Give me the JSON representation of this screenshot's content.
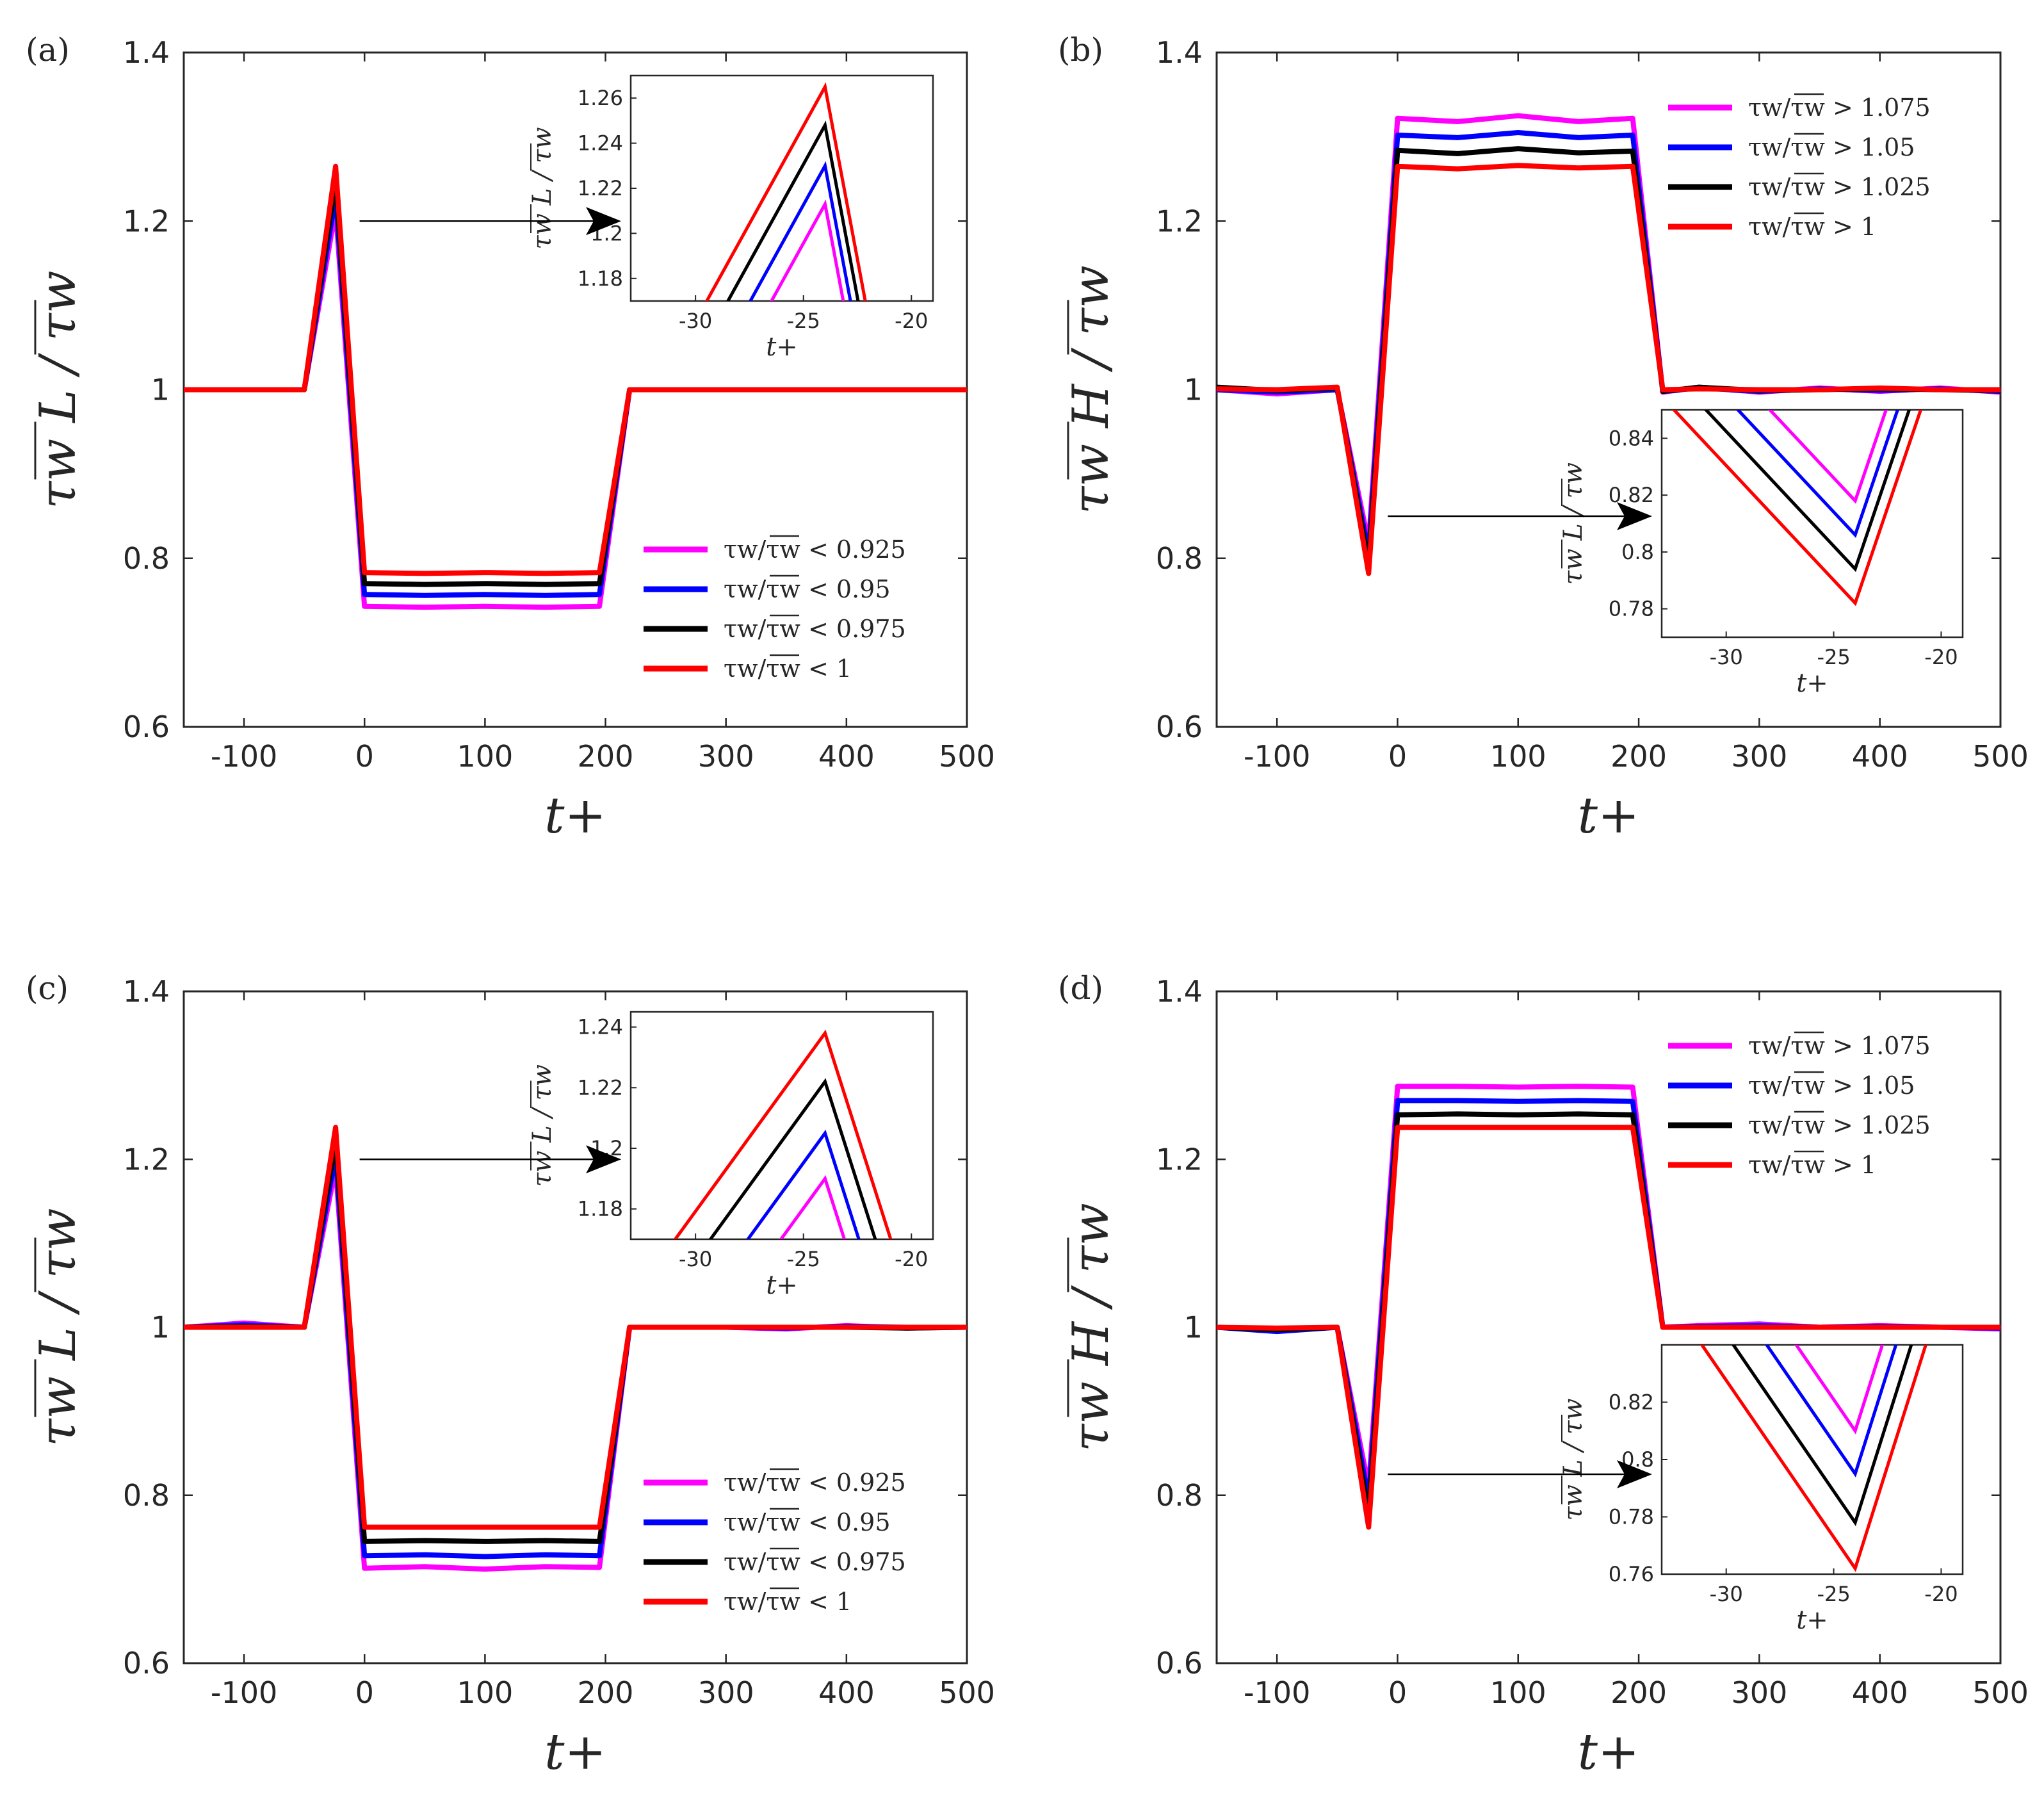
{
  "chart_data": [
    {
      "panel": "(a)",
      "type": "line",
      "xlabel": "t+",
      "ylabel": "τw L / τw",
      "xlim": [
        -150,
        500
      ],
      "ylim": [
        0.6,
        1.4
      ],
      "xticks": [
        "-100",
        "0",
        "100",
        "200",
        "300",
        "400",
        "500"
      ],
      "yticks": [
        "0.6",
        "0.8",
        "1",
        "1.2",
        "1.4"
      ],
      "x": [
        -150,
        -100,
        -50,
        -24,
        0,
        50,
        100,
        150,
        195,
        220,
        250,
        300,
        350,
        400,
        450,
        500
      ],
      "series": [
        {
          "name": "τw/τw < 0.925",
          "color": "#ff00ff",
          "values": [
            1,
            1,
            1,
            1.213,
            0.743,
            0.742,
            0.743,
            0.742,
            0.743,
            1,
            1,
            1,
            1,
            1,
            1,
            1
          ]
        },
        {
          "name": "τw/τw < 0.95",
          "color": "#0000ff",
          "values": [
            1,
            1,
            1,
            1.23,
            0.757,
            0.756,
            0.757,
            0.756,
            0.757,
            1,
            1,
            1,
            1,
            1,
            1,
            1
          ]
        },
        {
          "name": "τw/τw < 0.975",
          "color": "#000000",
          "values": [
            1,
            1,
            1,
            1.248,
            0.77,
            0.769,
            0.77,
            0.769,
            0.77,
            1,
            1,
            1,
            1,
            1,
            1,
            1
          ]
        },
        {
          "name": "τw/τw < 1",
          "color": "#ff0000",
          "values": [
            1,
            1,
            1,
            1.265,
            0.783,
            0.782,
            0.783,
            0.782,
            0.783,
            1,
            1,
            1,
            1,
            1,
            1,
            1
          ]
        }
      ],
      "legend": {
        "position": "lower-right",
        "entries": [
          "τw/τw < 0.925",
          "τw/τw < 0.95",
          "τw/τw < 0.975",
          "τw/τw < 1"
        ]
      },
      "inset": {
        "position": "top-right",
        "xlabel": "t+",
        "ylabel": "τw L / τw",
        "xlim": [
          -33,
          -19
        ],
        "ylim": [
          1.17,
          1.27
        ],
        "xticks": [
          "-30",
          "-25",
          "-20"
        ],
        "yticks": [
          "1.18",
          "1.2",
          "1.22",
          "1.24",
          "1.26"
        ],
        "peak_x": -24,
        "peaks": [
          1.213,
          1.23,
          1.248,
          1.265
        ],
        "slope_left": 0.01734,
        "slope_right": 0.05098,
        "arrow_from": [
          -20,
          1.2
        ]
      }
    },
    {
      "panel": "(b)",
      "type": "line",
      "xlabel": "t+",
      "ylabel": "τw H / τw",
      "xlim": [
        -150,
        500
      ],
      "ylim": [
        0.6,
        1.4
      ],
      "xticks": [
        "-100",
        "0",
        "100",
        "200",
        "300",
        "400",
        "500"
      ],
      "yticks": [
        "0.6",
        "0.8",
        "1",
        "1.2",
        "1.4"
      ],
      "x": [
        -150,
        -100,
        -50,
        -24,
        0,
        50,
        100,
        150,
        195,
        220,
        250,
        300,
        350,
        400,
        450,
        500
      ],
      "series": [
        {
          "name": "τw/τw > 1.075",
          "color": "#ff00ff",
          "values": [
            1,
            0.995,
            1,
            0.818,
            1.322,
            1.318,
            1.325,
            1.318,
            1.322,
            0.997,
            1.003,
            0.997,
            1.002,
            0.998,
            1.002,
            0.997
          ]
        },
        {
          "name": "τw/τw > 1.05",
          "color": "#0000ff",
          "values": [
            1,
            0.997,
            1,
            0.806,
            1.302,
            1.299,
            1.305,
            1.299,
            1.302,
            0.998,
            1.002,
            0.998,
            1.001,
            0.999,
            1.001,
            0.998
          ]
        },
        {
          "name": "τw/τw > 1.025",
          "color": "#000000",
          "values": [
            1.003,
            0.999,
            1.002,
            0.794,
            1.284,
            1.28,
            1.286,
            1.281,
            1.283,
            0.998,
            1.003,
            0.999,
            1,
            1.001,
            1,
            0.999
          ]
        },
        {
          "name": "τw/τw > 1",
          "color": "#ff0000",
          "values": [
            1.001,
            1,
            1.003,
            0.782,
            1.265,
            1.262,
            1.266,
            1.263,
            1.265,
            1,
            1.001,
            1,
            1,
            1.002,
            1,
            1
          ]
        }
      ],
      "legend": {
        "position": "top-right",
        "entries": [
          "τw/τw > 1.075",
          "τw/τw > 1.05",
          "τw/τw > 1.025",
          "τw/τw > 1"
        ]
      },
      "inset": {
        "position": "lower-right",
        "xlabel": "t+",
        "ylabel": "τw L / τw",
        "xlim": [
          -33,
          -19
        ],
        "ylim": [
          0.77,
          0.85
        ],
        "xticks": [
          "-30",
          "-25",
          "-20"
        ],
        "yticks": [
          "0.78",
          "0.8",
          "0.82",
          "0.84"
        ],
        "peak_x": -24,
        "peaks": [
          0.818,
          0.806,
          0.794,
          0.782
        ],
        "slope_left": -0.00807,
        "slope_right": -0.0223,
        "arrow_from": [
          -24,
          0.85
        ]
      }
    },
    {
      "panel": "(c)",
      "type": "line",
      "xlabel": "t+",
      "ylabel": "τw L / τw",
      "xlim": [
        -150,
        500
      ],
      "ylim": [
        0.6,
        1.4
      ],
      "xticks": [
        "-100",
        "0",
        "100",
        "200",
        "300",
        "400",
        "500"
      ],
      "yticks": [
        "0.6",
        "0.8",
        "1",
        "1.2",
        "1.4"
      ],
      "x": [
        -150,
        -100,
        -50,
        -24,
        0,
        50,
        100,
        150,
        195,
        220,
        250,
        300,
        350,
        400,
        450,
        500
      ],
      "series": [
        {
          "name": "τw/τw < 0.925",
          "color": "#ff00ff",
          "values": [
            1,
            1.005,
            1,
            1.19,
            0.713,
            0.715,
            0.712,
            0.715,
            0.714,
            1,
            1,
            1,
            0.998,
            1.002,
            0.999,
            1
          ]
        },
        {
          "name": "τw/τw < 0.95",
          "color": "#0000ff",
          "values": [
            1,
            1.003,
            1,
            1.205,
            0.728,
            0.729,
            0.727,
            0.729,
            0.728,
            1,
            1,
            1,
            0.999,
            1.001,
            1,
            1
          ]
        },
        {
          "name": "τw/τw < 0.975",
          "color": "#000000",
          "values": [
            1,
            1.001,
            1,
            1.222,
            0.745,
            0.746,
            0.745,
            0.746,
            0.745,
            1,
            1,
            1,
            1,
            1,
            0.999,
            1
          ]
        },
        {
          "name": "τw/τw < 1",
          "color": "#ff0000",
          "values": [
            1,
            1,
            1,
            1.238,
            0.762,
            0.762,
            0.762,
            0.762,
            0.762,
            1,
            1,
            1,
            1,
            1,
            1,
            1
          ]
        }
      ],
      "legend": {
        "position": "lower-right",
        "entries": [
          "τw/τw < 0.925",
          "τw/τw < 0.95",
          "τw/τw < 0.975",
          "τw/τw < 1"
        ]
      },
      "inset": {
        "position": "top-right",
        "xlabel": "t+",
        "ylabel": "τw L / τw",
        "xlim": [
          -33,
          -19
        ],
        "ylim": [
          1.17,
          1.245
        ],
        "xticks": [
          "-30",
          "-25",
          "-20"
        ],
        "yticks": [
          "1.18",
          "1.2",
          "1.22",
          "1.24"
        ],
        "peak_x": -24,
        "peaks": [
          1.19,
          1.205,
          1.222,
          1.238
        ],
        "slope_left": 0.0098,
        "slope_right": 0.02236,
        "arrow_from": [
          -20,
          1.2
        ]
      }
    },
    {
      "panel": "(d)",
      "type": "line",
      "xlabel": "t+",
      "ylabel": "τw H / τw",
      "xlim": [
        -150,
        500
      ],
      "ylim": [
        0.6,
        1.4
      ],
      "xticks": [
        "-100",
        "0",
        "100",
        "200",
        "300",
        "400",
        "500"
      ],
      "yticks": [
        "0.6",
        "0.8",
        "1",
        "1.2",
        "1.4"
      ],
      "x": [
        -150,
        -100,
        -50,
        -24,
        0,
        50,
        100,
        150,
        195,
        220,
        250,
        300,
        350,
        400,
        450,
        500
      ],
      "series": [
        {
          "name": "τw/τw > 1.075",
          "color": "#ff00ff",
          "values": [
            1,
            0.996,
            1,
            0.81,
            1.287,
            1.287,
            1.286,
            1.287,
            1.286,
            1,
            1.002,
            1.004,
            1,
            1.002,
            1,
            0.998
          ]
        },
        {
          "name": "τw/τw > 1.05",
          "color": "#0000ff",
          "values": [
            1,
            0.995,
            1,
            0.795,
            1.27,
            1.27,
            1.269,
            1.27,
            1.269,
            1,
            1.001,
            1.002,
            1,
            1.001,
            1,
            0.999
          ]
        },
        {
          "name": "τw/τw > 1.025",
          "color": "#000000",
          "values": [
            1,
            0.997,
            1,
            0.778,
            1.253,
            1.254,
            1.253,
            1.254,
            1.253,
            1,
            1,
            1,
            1,
            1,
            1,
            1
          ]
        },
        {
          "name": "τw/τw > 1",
          "color": "#ff0000",
          "values": [
            1,
            0.999,
            1,
            0.762,
            1.238,
            1.238,
            1.238,
            1.238,
            1.238,
            1,
            1,
            1,
            1,
            1,
            1,
            1
          ]
        }
      ],
      "legend": {
        "position": "top-right",
        "entries": [
          "τw/τw > 1.075",
          "τw/τw > 1.05",
          "τw/τw > 1.025",
          "τw/τw > 1"
        ]
      },
      "inset": {
        "position": "lower-right",
        "xlabel": "t+",
        "ylabel": "τw L / τw",
        "xlim": [
          -33,
          -19
        ],
        "ylim": [
          0.76,
          0.84
        ],
        "xticks": [
          "-30",
          "-25",
          "-20"
        ],
        "yticks": [
          "0.76",
          "0.78",
          "0.8",
          "0.82"
        ],
        "peak_x": -24,
        "peaks": [
          0.81,
          0.795,
          0.778,
          0.762
        ],
        "slope_left": -0.01094,
        "slope_right": -0.02376,
        "arrow_from": [
          -24,
          0.825
        ]
      }
    }
  ]
}
